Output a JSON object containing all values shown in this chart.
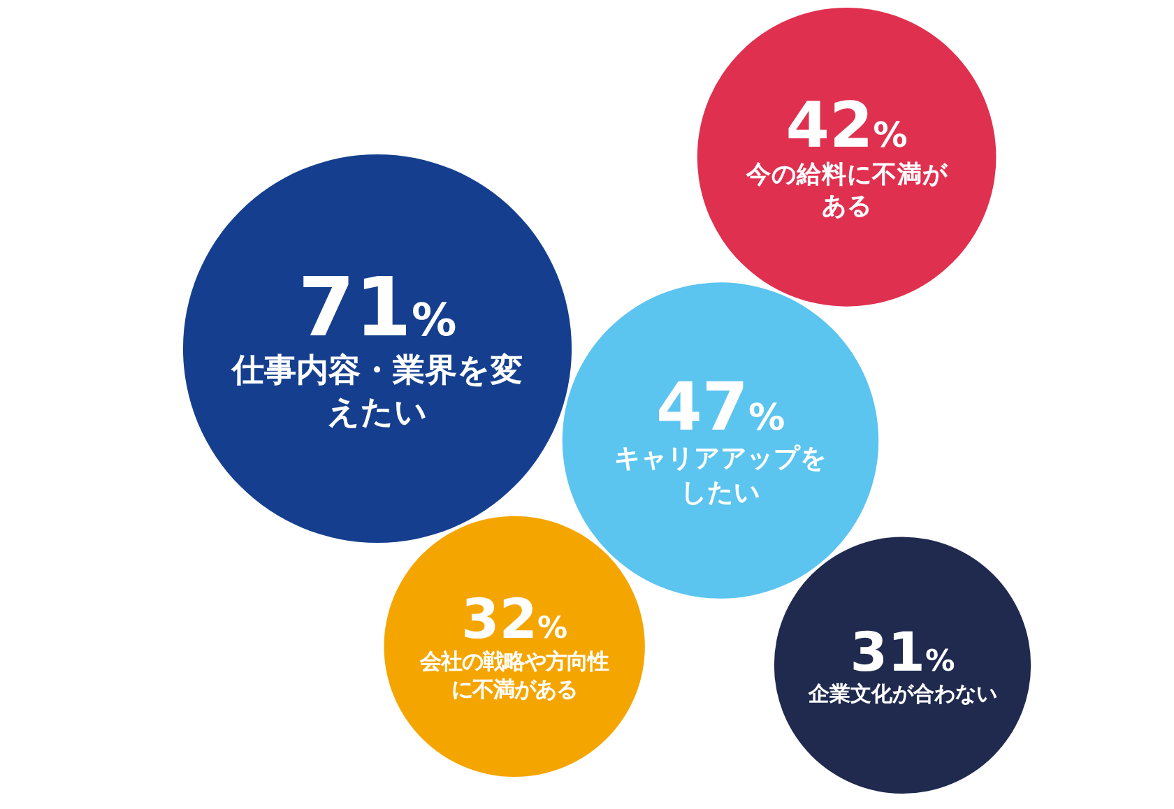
{
  "chart_data": {
    "type": "other",
    "categories": [
      "仕事内容・業界を変えたい",
      "キャリアアップをしたい",
      "今の給料に不満がある",
      "会社の戦略や方向性に不満がある",
      "企業文化が合わない"
    ],
    "values": [
      71,
      47,
      42,
      32,
      31
    ],
    "value_labels": [
      "71%",
      "47%",
      "42%",
      "32%",
      "31%"
    ],
    "colors": [
      "#153f8e",
      "#5bc4ef",
      "#e0304f",
      "#f5a500",
      "#1f2a4e"
    ]
  }
}
